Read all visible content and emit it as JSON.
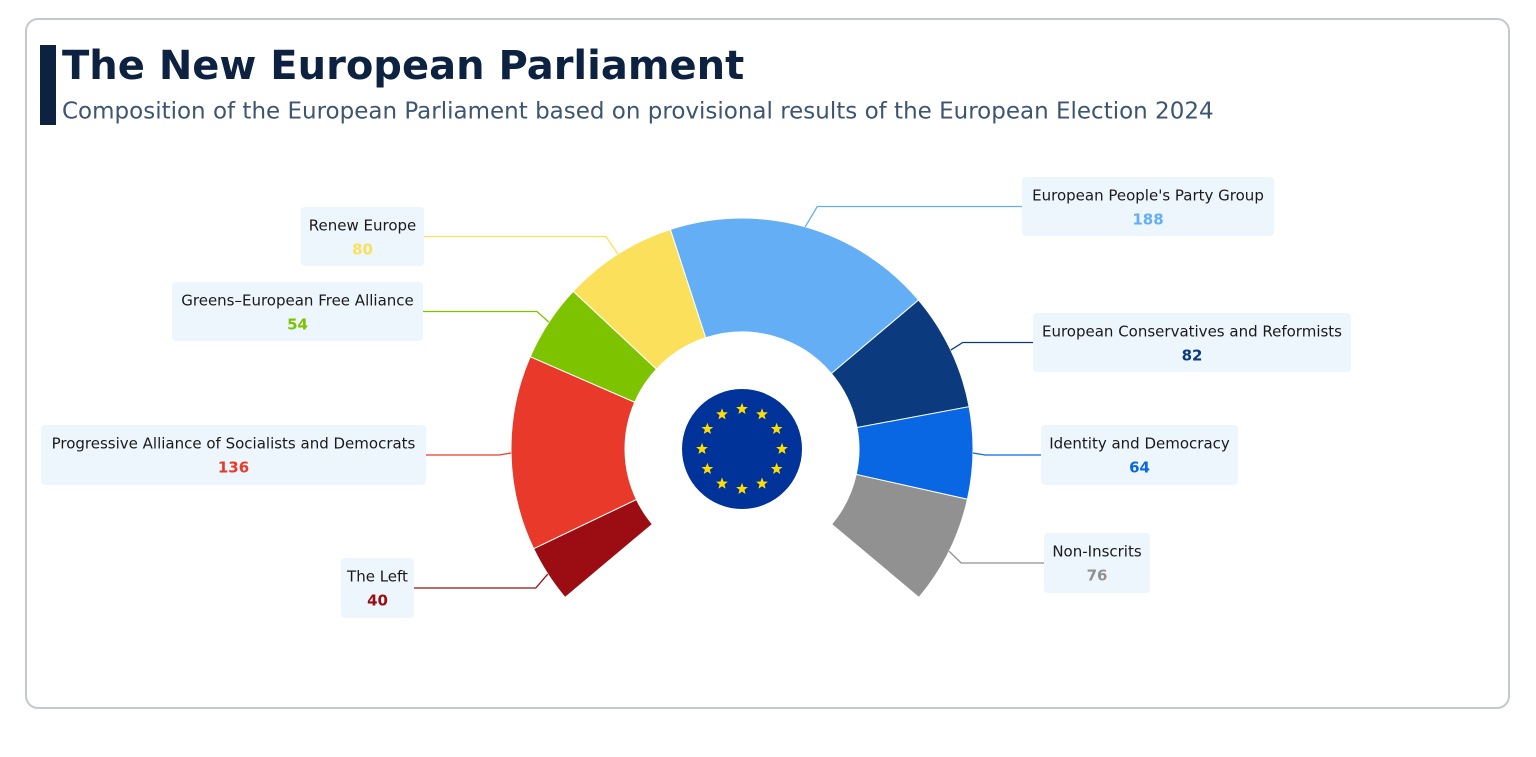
{
  "chart_data": {
    "type": "donut",
    "title": "The New European Parliament",
    "subtitle": "Composition of the European Parliament based on provisional results of the European Election 2024",
    "categories": [
      "The Left",
      "Progressive Alliance of Socialists and Democrats",
      "Greens–European Free Alliance",
      "Renew Europe",
      "European People's Party Group",
      "European Conservatives and Reformists",
      "Identity and Democracy",
      "Non-Inscrits"
    ],
    "values": [
      40,
      136,
      54,
      80,
      188,
      82,
      64,
      76
    ],
    "colors": [
      "#9b0d13",
      "#e8392a",
      "#7ec300",
      "#fbe15b",
      "#64aef5",
      "#0b3b7e",
      "#0a67e3",
      "#919191"
    ]
  }
}
